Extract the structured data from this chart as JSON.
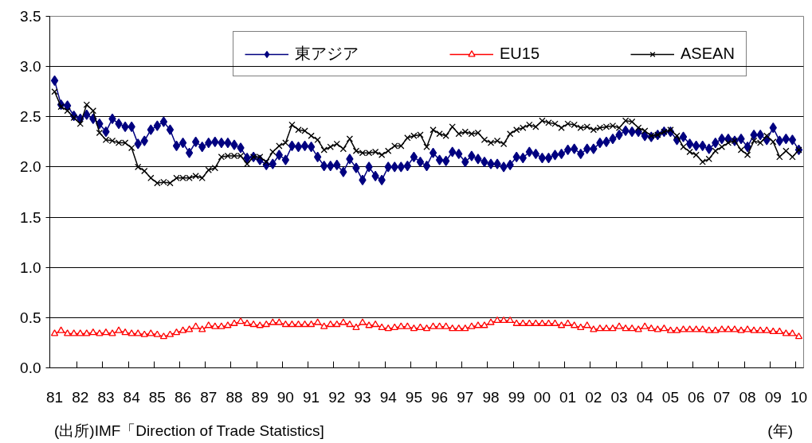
{
  "chart_data": {
    "type": "line",
    "categories": [
      "81",
      null,
      null,
      null,
      "82",
      null,
      null,
      null,
      "83",
      null,
      null,
      null,
      "84",
      null,
      null,
      null,
      "85",
      null,
      null,
      null,
      "86",
      null,
      null,
      null,
      "87",
      null,
      null,
      null,
      "88",
      null,
      null,
      null,
      "89",
      null,
      null,
      null,
      "90",
      null,
      null,
      null,
      "91",
      null,
      null,
      null,
      "92",
      null,
      null,
      null,
      "93",
      null,
      null,
      null,
      "94",
      null,
      null,
      null,
      "95",
      null,
      null,
      null,
      "96",
      null,
      null,
      null,
      "97",
      null,
      null,
      null,
      "98",
      null,
      null,
      null,
      "99",
      null,
      null,
      null,
      "00",
      null,
      null,
      null,
      "01",
      null,
      null,
      null,
      "02",
      null,
      null,
      null,
      "03",
      null,
      null,
      null,
      "04",
      null,
      null,
      null,
      "05",
      null,
      null,
      null,
      "06",
      null,
      null,
      null,
      "07",
      null,
      null,
      null,
      "08",
      null,
      null,
      null,
      "09",
      null,
      null,
      null,
      "10"
    ],
    "series": [
      {
        "name": "東アジア",
        "color": "#000080",
        "marker": "diamond",
        "values": [
          2.86,
          2.62,
          2.61,
          2.51,
          2.48,
          2.52,
          2.48,
          2.43,
          2.35,
          2.48,
          2.43,
          2.4,
          2.4,
          2.23,
          2.26,
          2.37,
          2.41,
          2.45,
          2.37,
          2.21,
          2.24,
          2.14,
          2.25,
          2.2,
          2.24,
          2.25,
          2.24,
          2.24,
          2.22,
          2.19,
          2.09,
          2.1,
          2.07,
          2.02,
          2.03,
          2.12,
          2.07,
          2.21,
          2.2,
          2.21,
          2.2,
          2.1,
          2.01,
          2.01,
          2.02,
          1.95,
          2.08,
          1.99,
          1.87,
          2.0,
          1.91,
          1.87,
          2.0,
          2.0,
          2.0,
          2.01,
          2.1,
          2.05,
          2.01,
          2.14,
          2.07,
          2.06,
          2.15,
          2.13,
          2.05,
          2.11,
          2.08,
          2.05,
          2.03,
          2.03,
          2.0,
          2.02,
          2.1,
          2.09,
          2.15,
          2.13,
          2.09,
          2.09,
          2.12,
          2.13,
          2.17,
          2.18,
          2.13,
          2.18,
          2.18,
          2.24,
          2.25,
          2.28,
          2.32,
          2.36,
          2.35,
          2.35,
          2.31,
          2.3,
          2.32,
          2.35,
          2.35,
          2.27,
          2.3,
          2.23,
          2.21,
          2.21,
          2.18,
          2.24,
          2.28,
          2.28,
          2.26,
          2.28,
          2.2,
          2.32,
          2.32,
          2.27,
          2.39,
          2.26,
          2.28,
          2.27,
          2.17
        ]
      },
      {
        "name": "EU15",
        "color": "#ff0000",
        "marker": "triangle",
        "values": [
          0.34,
          0.37,
          0.34,
          0.34,
          0.34,
          0.34,
          0.35,
          0.34,
          0.35,
          0.34,
          0.37,
          0.35,
          0.34,
          0.34,
          0.33,
          0.34,
          0.33,
          0.31,
          0.33,
          0.35,
          0.37,
          0.38,
          0.41,
          0.38,
          0.42,
          0.41,
          0.41,
          0.42,
          0.44,
          0.46,
          0.44,
          0.43,
          0.42,
          0.43,
          0.45,
          0.45,
          0.43,
          0.43,
          0.43,
          0.43,
          0.43,
          0.45,
          0.41,
          0.43,
          0.43,
          0.45,
          0.43,
          0.4,
          0.45,
          0.42,
          0.43,
          0.4,
          0.39,
          0.4,
          0.41,
          0.41,
          0.39,
          0.4,
          0.39,
          0.41,
          0.41,
          0.41,
          0.39,
          0.39,
          0.39,
          0.41,
          0.42,
          0.42,
          0.45,
          0.47,
          0.47,
          0.47,
          0.44,
          0.44,
          0.44,
          0.44,
          0.44,
          0.44,
          0.44,
          0.42,
          0.44,
          0.42,
          0.4,
          0.42,
          0.38,
          0.39,
          0.39,
          0.39,
          0.41,
          0.39,
          0.39,
          0.38,
          0.41,
          0.39,
          0.38,
          0.39,
          0.37,
          0.37,
          0.38,
          0.38,
          0.38,
          0.38,
          0.37,
          0.37,
          0.38,
          0.38,
          0.38,
          0.37,
          0.38,
          0.37,
          0.37,
          0.37,
          0.36,
          0.36,
          0.34,
          0.34,
          0.31
        ]
      },
      {
        "name": "ASEAN",
        "color": "#000000",
        "marker": "cross",
        "values": [
          2.75,
          2.6,
          2.56,
          2.49,
          2.43,
          2.62,
          2.56,
          2.34,
          2.27,
          2.26,
          2.24,
          2.24,
          2.19,
          2.0,
          1.96,
          1.89,
          1.84,
          1.85,
          1.84,
          1.89,
          1.89,
          1.89,
          1.91,
          1.89,
          1.97,
          1.99,
          2.1,
          2.11,
          2.11,
          2.11,
          2.03,
          2.1,
          2.1,
          2.05,
          2.15,
          2.21,
          2.24,
          2.42,
          2.37,
          2.36,
          2.31,
          2.27,
          2.17,
          2.2,
          2.23,
          2.18,
          2.28,
          2.16,
          2.14,
          2.14,
          2.15,
          2.12,
          2.16,
          2.21,
          2.21,
          2.29,
          2.31,
          2.32,
          2.2,
          2.37,
          2.33,
          2.31,
          2.4,
          2.33,
          2.35,
          2.33,
          2.34,
          2.27,
          2.24,
          2.26,
          2.23,
          2.33,
          2.37,
          2.39,
          2.42,
          2.4,
          2.46,
          2.44,
          2.43,
          2.39,
          2.43,
          2.42,
          2.39,
          2.4,
          2.37,
          2.39,
          2.4,
          2.41,
          2.39,
          2.46,
          2.45,
          2.39,
          2.36,
          2.31,
          2.32,
          2.35,
          2.37,
          2.31,
          2.2,
          2.15,
          2.12,
          2.05,
          2.08,
          2.16,
          2.2,
          2.24,
          2.26,
          2.17,
          2.12,
          2.26,
          2.24,
          2.31,
          2.25,
          2.1,
          2.16,
          2.1,
          2.17
        ]
      }
    ],
    "ylim": [
      0,
      3.5
    ],
    "yticks": [
      {
        "value": 0,
        "label": "0.0"
      },
      0.5,
      {
        "value": 1,
        "label": "1.0"
      },
      1.5,
      {
        "value": 2,
        "label": "2.0"
      },
      2.5,
      {
        "value": 3,
        "label": "3.0"
      },
      3.5
    ],
    "grid": "y",
    "legend": "top",
    "line_style": "solid",
    "xlabel": "(年)",
    "annotations": [
      "(出所)IMF「Direction of Trade Statistics]"
    ]
  }
}
